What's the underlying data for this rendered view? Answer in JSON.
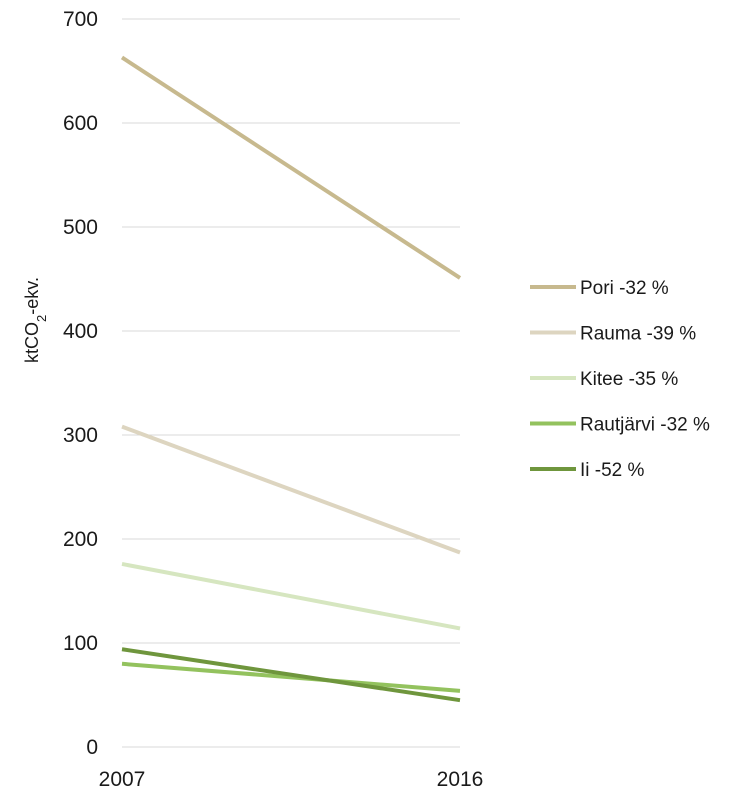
{
  "chart_data": {
    "type": "line",
    "x": [
      "2007",
      "2016"
    ],
    "y_ticks": [
      "0",
      "100",
      "200",
      "300",
      "400",
      "500",
      "600",
      "700"
    ],
    "ylim": [
      0,
      700
    ],
    "ylabel": {
      "main": "ktCO",
      "sub": "2",
      "tail": "-ekv."
    },
    "grid": true,
    "legend_position": "right",
    "series": [
      {
        "name": "Pori -32 %",
        "values": [
          663,
          451
        ],
        "color": "#c7b98e"
      },
      {
        "name": "Rauma -39 %",
        "values": [
          308,
          187
        ],
        "color": "#ddd5c0"
      },
      {
        "name": "Kitee -35 %",
        "values": [
          176,
          114
        ],
        "color": "#d6e6c0"
      },
      {
        "name": "Rautjärvi -32 %",
        "values": [
          80,
          54
        ],
        "color": "#93c25e"
      },
      {
        "name": "Ii -52 %",
        "values": [
          94,
          45
        ],
        "color": "#6f963d"
      }
    ]
  }
}
